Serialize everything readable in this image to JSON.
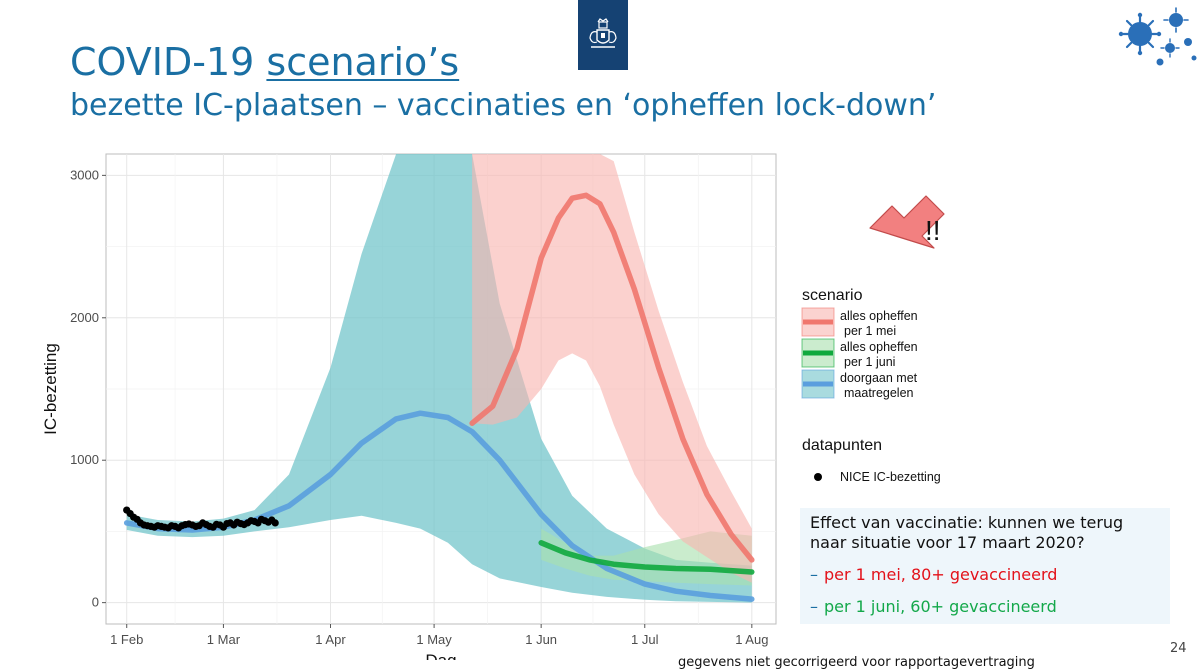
{
  "slide": {
    "title_prefix": "COVID-19",
    "title_underlined": "scenario’s",
    "subtitle": "bezette IC-plaatsen – vaccinaties en ‘opheffen lock-down’",
    "page_number": "24",
    "footnote": "gegevens niet gecorrigeerd voor rapportagevertraging"
  },
  "callout": {
    "question": "Effect van vaccinatie: kunnen we terug naar situatie voor 17 maart 2020?",
    "items": [
      {
        "dash": "–",
        "text": "per 1 mei, 80+ gevaccineerd",
        "color": "#e3121a"
      },
      {
        "dash": "–",
        "text": "per 1 juni, 60+ gevaccineerd",
        "color": "#13a84a"
      }
    ]
  },
  "annotation": {
    "text": "!!",
    "arrow_color": "#f28080"
  },
  "chart_data": {
    "type": "line",
    "xlabel": "Dag",
    "ylabel": "IC-bezetting",
    "xlim": [
      "2021-01-26",
      "2021-08-08"
    ],
    "ylim": [
      -150,
      3150
    ],
    "grid": true,
    "x_ticks": [
      {
        "date": "2021-02-01",
        "label": "1 Feb"
      },
      {
        "date": "2021-03-01",
        "label": "1 Mar"
      },
      {
        "date": "2021-04-01",
        "label": "1 Apr"
      },
      {
        "date": "2021-05-01",
        "label": "1 May"
      },
      {
        "date": "2021-06-01",
        "label": "1 Jun"
      },
      {
        "date": "2021-07-01",
        "label": "1 Jul"
      },
      {
        "date": "2021-08-01",
        "label": "1 Aug"
      }
    ],
    "y_ticks": [
      0,
      1000,
      2000,
      3000
    ],
    "legend_placement": "right",
    "legend_title_scenario": "scenario",
    "legend_title_data": "datapunten",
    "series": [
      {
        "name": "alles opheffen per 1 mei",
        "label_lines": [
          "alles opheffen",
          "per 1 mei"
        ],
        "color": "#f0776e",
        "band_color": "#f9b5b0",
        "x": [
          "2021-05-12",
          "2021-05-18",
          "2021-05-25",
          "2021-06-01",
          "2021-06-06",
          "2021-06-10",
          "2021-06-14",
          "2021-06-18",
          "2021-06-22",
          "2021-06-28",
          "2021-07-05",
          "2021-07-12",
          "2021-07-19",
          "2021-07-26",
          "2021-08-01"
        ],
        "y": [
          1260,
          1380,
          1780,
          2420,
          2700,
          2840,
          2860,
          2800,
          2600,
          2200,
          1650,
          1150,
          760,
          480,
          300
        ],
        "lower": [
          1260,
          1250,
          1300,
          1500,
          1700,
          1750,
          1700,
          1520,
          1250,
          900,
          620,
          430,
          320,
          210,
          140
        ],
        "upper": [
          3150,
          3150,
          3150,
          3150,
          3150,
          3150,
          3150,
          3150,
          3100,
          2600,
          2050,
          1550,
          1100,
          780,
          520
        ]
      },
      {
        "name": "alles opheffen per 1 juni",
        "label_lines": [
          "alles opheffen",
          "per 1 juni"
        ],
        "color": "#10a93e",
        "band_color": "#a9e0ae",
        "x": [
          "2021-06-01",
          "2021-06-08",
          "2021-06-15",
          "2021-06-22",
          "2021-07-01",
          "2021-07-10",
          "2021-07-20",
          "2021-08-01"
        ],
        "y": [
          420,
          350,
          300,
          270,
          250,
          240,
          235,
          215
        ],
        "lower": [
          300,
          240,
          190,
          160,
          150,
          140,
          130,
          120
        ],
        "upper": [
          520,
          420,
          330,
          330,
          390,
          440,
          500,
          470
        ]
      },
      {
        "name": "doorgaan met maatregelen",
        "label_lines": [
          "doorgaan met",
          "maatregelen"
        ],
        "color": "#5a9ede",
        "band_color": "#6fc3c9",
        "x": [
          "2021-02-01",
          "2021-02-10",
          "2021-02-20",
          "2021-03-01",
          "2021-03-10",
          "2021-03-20",
          "2021-04-01",
          "2021-04-10",
          "2021-04-20",
          "2021-04-27",
          "2021-05-05",
          "2021-05-12",
          "2021-05-20",
          "2021-06-01",
          "2021-06-10",
          "2021-06-20",
          "2021-07-01",
          "2021-07-10",
          "2021-07-20",
          "2021-08-01"
        ],
        "y": [
          560,
          520,
          510,
          530,
          580,
          680,
          900,
          1120,
          1290,
          1330,
          1300,
          1200,
          1000,
          620,
          400,
          240,
          130,
          80,
          50,
          25
        ],
        "lower": [
          510,
          470,
          460,
          470,
          500,
          530,
          580,
          610,
          560,
          520,
          420,
          270,
          170,
          110,
          70,
          40,
          20,
          10,
          5,
          0
        ],
        "upper": [
          620,
          580,
          570,
          590,
          650,
          900,
          1650,
          2450,
          3150,
          3150,
          3150,
          3150,
          2100,
          1150,
          750,
          520,
          380,
          300,
          280,
          260
        ]
      }
    ],
    "points": {
      "name": "NICE IC-bezetting",
      "color": "#000000",
      "x": [
        "2021-02-01",
        "2021-02-02",
        "2021-02-03",
        "2021-02-04",
        "2021-02-05",
        "2021-02-06",
        "2021-02-07",
        "2021-02-08",
        "2021-02-09",
        "2021-02-10",
        "2021-02-11",
        "2021-02-12",
        "2021-02-13",
        "2021-02-14",
        "2021-02-15",
        "2021-02-16",
        "2021-02-17",
        "2021-02-18",
        "2021-02-19",
        "2021-02-20",
        "2021-02-21",
        "2021-02-22",
        "2021-02-23",
        "2021-02-24",
        "2021-02-25",
        "2021-02-26",
        "2021-02-27",
        "2021-02-28",
        "2021-03-01",
        "2021-03-02",
        "2021-03-03",
        "2021-03-04",
        "2021-03-05",
        "2021-03-06",
        "2021-03-07",
        "2021-03-08",
        "2021-03-09",
        "2021-03-10",
        "2021-03-11",
        "2021-03-12",
        "2021-03-13",
        "2021-03-14",
        "2021-03-15",
        "2021-03-16"
      ],
      "y": [
        650,
        625,
        600,
        585,
        560,
        545,
        540,
        535,
        530,
        540,
        535,
        530,
        525,
        540,
        535,
        525,
        540,
        548,
        552,
        545,
        535,
        540,
        560,
        548,
        535,
        530,
        550,
        545,
        530,
        555,
        560,
        545,
        565,
        555,
        548,
        560,
        575,
        570,
        560,
        585,
        575,
        565,
        580,
        560
      ]
    }
  }
}
